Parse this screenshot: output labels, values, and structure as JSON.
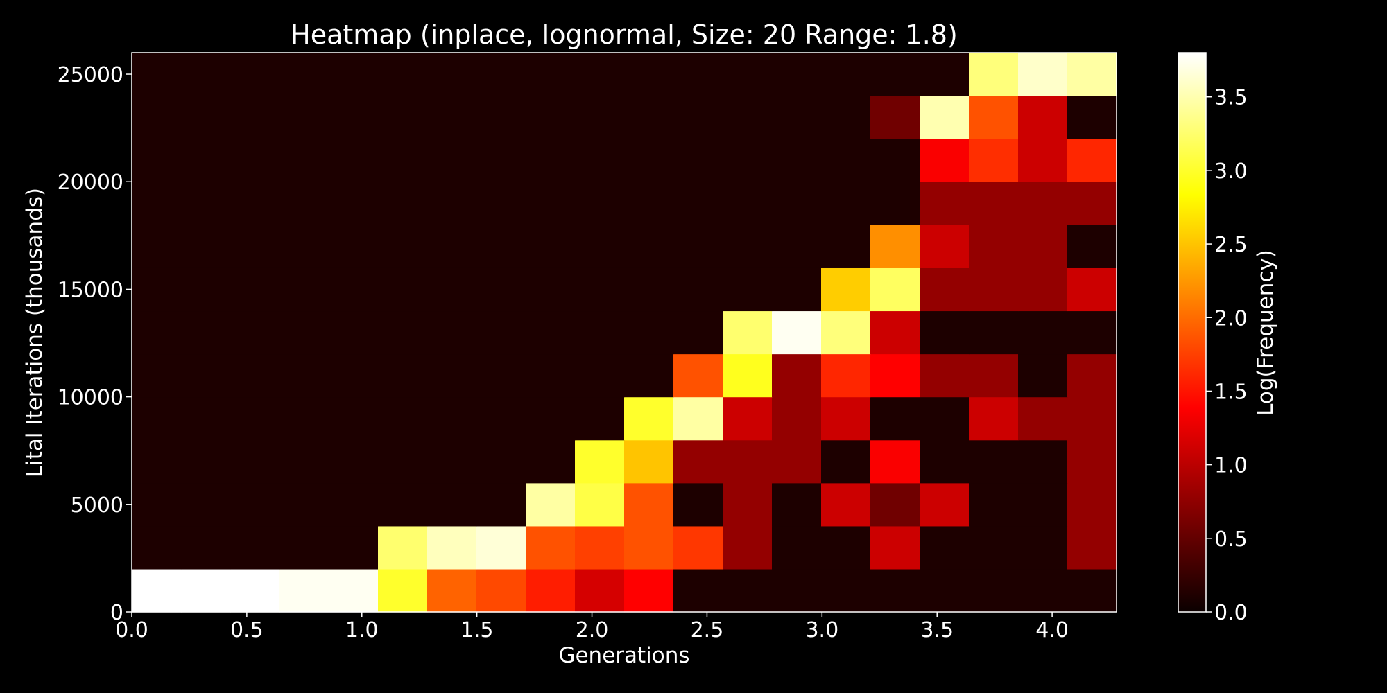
{
  "chart_data": {
    "type": "heatmap",
    "title": "Heatmap (inplace, lognormal, Size: 20 Range: 1.8)",
    "xlabel": "Generations",
    "ylabel": "Lital Iterations (thousands)",
    "colorbar_label": "Log(Frequency)",
    "colormap": "hot",
    "background_color": "#000000",
    "xlim": [
      0,
      4.28
    ],
    "ylim": [
      0,
      26000
    ],
    "x_ticks": [
      0.0,
      0.5,
      1.0,
      1.5,
      2.0,
      2.5,
      3.0,
      3.5,
      4.0
    ],
    "x_tick_labels": [
      "0.0",
      "0.5",
      "1.0",
      "1.5",
      "2.0",
      "2.5",
      "3.0",
      "3.5",
      "4.0"
    ],
    "y_ticks": [
      0,
      5000,
      10000,
      15000,
      20000,
      25000
    ],
    "y_tick_labels": [
      "0",
      "5000",
      "10000",
      "15000",
      "20000",
      "25000"
    ],
    "color_range": [
      0,
      3.8
    ],
    "colorbar_ticks": [
      0.0,
      0.5,
      1.0,
      1.5,
      2.0,
      2.5,
      3.0,
      3.5
    ],
    "colorbar_tick_labels": [
      "0.0",
      "0.5",
      "1.0",
      "1.5",
      "2.0",
      "2.5",
      "3.0",
      "3.5"
    ],
    "x_bin_edges": [
      0,
      0.214,
      0.428,
      0.642,
      0.856,
      1.07,
      1.284,
      1.498,
      1.712,
      1.926,
      2.14,
      2.354,
      2.568,
      2.782,
      2.996,
      3.21,
      3.424,
      3.638,
      3.852,
      4.066,
      4.28
    ],
    "y_bin_edges": [
      0,
      2000,
      4000,
      6000,
      8000,
      10000,
      12000,
      14000,
      16000,
      18000,
      20000,
      22000,
      24000,
      26000
    ],
    "values": [
      [
        3.8,
        3.8,
        3.8,
        3.75,
        3.75,
        3.0,
        1.95,
        1.8,
        1.55,
        1.1,
        1.35,
        0.1,
        0.1,
        0.1,
        0.1,
        0.1,
        0.1,
        0.1,
        0.1,
        0.1
      ],
      [
        0.1,
        0.1,
        0.1,
        0.1,
        0.1,
        3.25,
        3.55,
        3.65,
        1.85,
        1.75,
        1.85,
        1.7,
        0.75,
        0.1,
        0.1,
        1.05,
        0.1,
        0.1,
        0.1,
        0.75
      ],
      [
        0.1,
        0.1,
        0.1,
        0.1,
        0.1,
        0.1,
        0.1,
        0.1,
        3.45,
        3.1,
        1.85,
        0.1,
        0.75,
        0.1,
        1.05,
        0.55,
        1.05,
        0.1,
        0.1,
        0.75
      ],
      [
        0.1,
        0.1,
        0.1,
        0.1,
        0.1,
        0.1,
        0.1,
        0.1,
        0.1,
        3.0,
        2.5,
        0.75,
        0.75,
        0.75,
        0.1,
        1.3,
        0.1,
        0.1,
        0.1,
        0.75
      ],
      [
        0.1,
        0.1,
        0.1,
        0.1,
        0.1,
        0.1,
        0.1,
        0.1,
        0.1,
        0.1,
        3.0,
        3.45,
        1.05,
        0.75,
        1.05,
        0.1,
        0.1,
        1.05,
        0.75,
        0.75
      ],
      [
        0.1,
        0.1,
        0.1,
        0.1,
        0.1,
        0.1,
        0.1,
        0.1,
        0.1,
        0.1,
        0.1,
        1.85,
        2.95,
        0.75,
        1.6,
        1.35,
        0.75,
        0.75,
        0.1,
        0.75
      ],
      [
        0.1,
        0.1,
        0.1,
        0.1,
        0.1,
        0.1,
        0.1,
        0.1,
        0.1,
        0.1,
        0.1,
        0.1,
        3.25,
        3.75,
        3.3,
        1.05,
        0.1,
        0.1,
        0.1,
        0.1
      ],
      [
        0.1,
        0.1,
        0.1,
        0.1,
        0.1,
        0.1,
        0.1,
        0.1,
        0.1,
        0.1,
        0.1,
        0.1,
        0.1,
        0.1,
        2.55,
        3.2,
        0.75,
        0.75,
        0.75,
        1.05
      ],
      [
        0.1,
        0.1,
        0.1,
        0.1,
        0.1,
        0.1,
        0.1,
        0.1,
        0.1,
        0.1,
        0.1,
        0.1,
        0.1,
        0.1,
        0.1,
        2.2,
        1.05,
        0.75,
        0.75,
        0.1
      ],
      [
        0.1,
        0.1,
        0.1,
        0.1,
        0.1,
        0.1,
        0.1,
        0.1,
        0.1,
        0.1,
        0.1,
        0.1,
        0.1,
        0.1,
        0.1,
        0.1,
        0.75,
        0.75,
        0.75,
        0.75
      ],
      [
        0.1,
        0.1,
        0.1,
        0.1,
        0.1,
        0.1,
        0.1,
        0.1,
        0.1,
        0.1,
        0.1,
        0.1,
        0.1,
        0.1,
        0.1,
        0.1,
        1.3,
        1.65,
        1.05,
        1.6
      ],
      [
        0.1,
        0.1,
        0.1,
        0.1,
        0.1,
        0.1,
        0.1,
        0.1,
        0.1,
        0.1,
        0.1,
        0.1,
        0.1,
        0.1,
        0.1,
        0.55,
        3.5,
        1.85,
        1.05,
        0.1
      ],
      [
        0.1,
        0.1,
        0.1,
        0.1,
        0.1,
        0.1,
        0.1,
        0.1,
        0.1,
        0.1,
        0.1,
        0.1,
        0.1,
        0.1,
        0.1,
        0.1,
        0.1,
        3.3,
        3.6,
        3.45
      ]
    ]
  }
}
